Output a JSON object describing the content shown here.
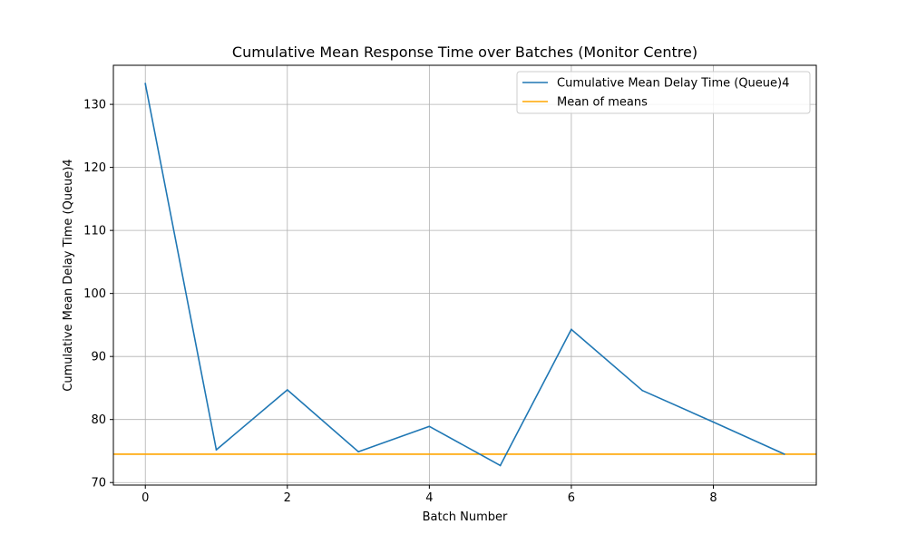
{
  "chart_data": {
    "type": "line",
    "title": "Cumulative Mean Response Time over Batches (Monitor Centre)",
    "xlabel": "Batch Number",
    "ylabel": "Cumulative Mean Delay Time (Queue)4",
    "xlim": [
      -0.45,
      9.45
    ],
    "ylim": [
      69.6,
      136.2
    ],
    "x_ticks": [
      0,
      2,
      4,
      6,
      8
    ],
    "y_ticks": [
      70,
      80,
      90,
      100,
      110,
      120,
      130
    ],
    "grid": true,
    "legend_position": "top-right",
    "series": [
      {
        "name": "Cumulative Mean Delay Time (Queue)4",
        "color": "#1f77b4",
        "x": [
          0,
          1,
          2,
          3,
          4,
          5,
          6,
          7,
          8,
          9
        ],
        "y": [
          133.3,
          75.2,
          84.7,
          74.9,
          78.9,
          72.7,
          94.3,
          84.6,
          79.6,
          74.5
        ]
      }
    ],
    "hlines": [
      {
        "name": "Mean of means",
        "color": "#ffa500",
        "y": 74.5
      }
    ]
  }
}
